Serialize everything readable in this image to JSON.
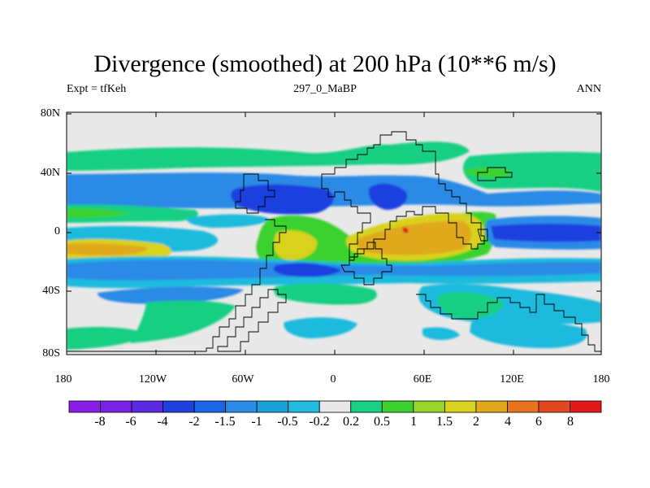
{
  "title": "Divergence (smoothed) at 200 hPa (10**6 m/s)",
  "subtitle_left": "Expt = tfKeh",
  "subtitle_center": "297_0_MaBP",
  "subtitle_right": "ANN",
  "y_ticks": [
    "80N",
    "40N",
    "0",
    "40S",
    "80S"
  ],
  "x_ticks": [
    "180",
    "120W",
    "60W",
    "0",
    "60E",
    "120E",
    "180"
  ],
  "colorbar": {
    "labels": [
      "-8",
      "-6",
      "-4",
      "-2",
      "-1.5",
      "-1",
      "-0.5",
      "-0.2",
      "0.2",
      "0.5",
      "1",
      "1.5",
      "2",
      "4",
      "6",
      "8"
    ],
    "colors": [
      "#8a1ee6",
      "#7a22e6",
      "#5a2be0",
      "#1f3fe0",
      "#1a66e6",
      "#2b8ae6",
      "#1a9fd8",
      "#1fbadc",
      "#e8e8e8",
      "#19cf82",
      "#3ad12e",
      "#9ad62a",
      "#d8d21e",
      "#e0a81a",
      "#e8741c",
      "#e2481e",
      "#e01a1a"
    ]
  },
  "colors": {
    "background": "#e8e8e8",
    "deep_blue": "#1f3fe0",
    "blue": "#2b8ae6",
    "light_blue": "#1fbadc",
    "green": "#19cf82",
    "lime": "#3ad12e",
    "yellow": "#d8d21e",
    "orange": "#e0a81a",
    "red": "#e01a1a"
  }
}
